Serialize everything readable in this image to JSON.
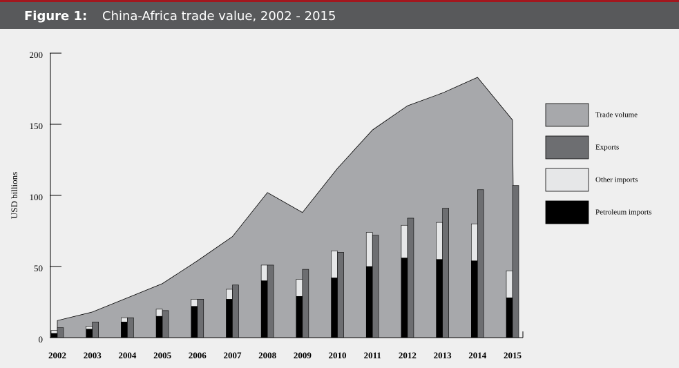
{
  "chart_data": {
    "type": "bar",
    "figure_label": "Figure 1:",
    "title": "China-Africa trade value, 2002 - 2015",
    "y_label": "USD billions",
    "categories": [
      "2002",
      "2003",
      "2004",
      "2005",
      "2006",
      "2007",
      "2008",
      "2009",
      "2010",
      "2011",
      "2012",
      "2013",
      "2014",
      "2015"
    ],
    "series": [
      {
        "name": "Trade volume",
        "color": "#a7a8ab",
        "style": "area",
        "values": [
          12,
          18,
          28,
          38,
          54,
          71,
          102,
          88,
          119,
          146,
          163,
          172,
          183,
          153
        ]
      },
      {
        "name": "Exports",
        "color": "#6d6e71",
        "style": "bar",
        "stack": "exports",
        "values": [
          7,
          11,
          14,
          19,
          27,
          37,
          51,
          48,
          60,
          72,
          84,
          91,
          104,
          107
        ]
      },
      {
        "name": "Other imports",
        "color": "#e6e7e8",
        "style": "bar",
        "stack": "imports",
        "values": [
          2,
          2,
          3,
          5,
          5,
          7,
          11,
          12,
          19,
          24,
          23,
          26,
          26,
          19
        ]
      },
      {
        "name": "Petroleum imports",
        "color": "#000000",
        "style": "bar",
        "stack": "imports",
        "values": [
          3,
          6,
          11,
          15,
          22,
          27,
          40,
          29,
          42,
          50,
          56,
          55,
          54,
          28
        ]
      }
    ],
    "ylim": [
      0,
      200
    ],
    "yticks": [
      0,
      50,
      100,
      150,
      200
    ]
  }
}
